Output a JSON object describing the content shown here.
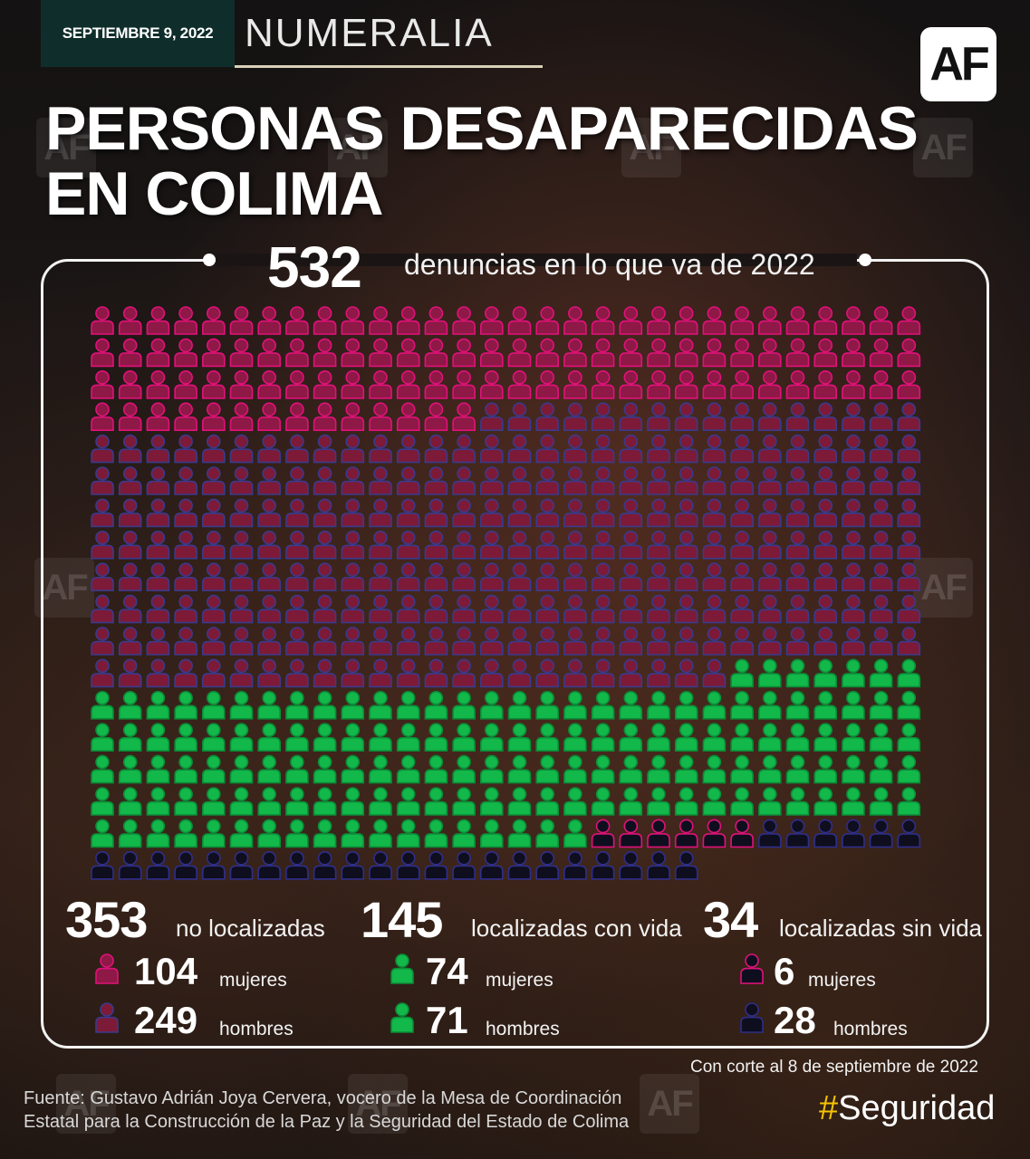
{
  "header": {
    "date": "SEPTIEMBRE 9, 2022",
    "section": "NUMERALIA",
    "logo": "AF"
  },
  "title": {
    "line1": "PERSONAS DESAPARECIDAS",
    "line2": "EN COLIMA"
  },
  "total": {
    "value": "532",
    "label": "denuncias en lo que va de 2022"
  },
  "colors": {
    "no_localizadas_mujeres": "#e0127a",
    "no_localizadas_hombres": "#3a3a8c",
    "con_vida": "#12b84a",
    "sin_vida_mujeres": "#e0127a",
    "sin_vida_hombres": "#2e2e8a"
  },
  "chart_data": {
    "type": "waffle",
    "columns": 30,
    "total": 532,
    "groups": [
      {
        "label": "no localizadas",
        "subgroup": "mujeres",
        "value": 104
      },
      {
        "label": "no localizadas",
        "subgroup": "hombres",
        "value": 249
      },
      {
        "label": "localizadas con vida",
        "subgroup": "mujeres",
        "value": 74
      },
      {
        "label": "localizadas con vida",
        "subgroup": "hombres",
        "value": 71
      },
      {
        "label": "localizadas sin vida",
        "subgroup": "mujeres",
        "value": 6
      },
      {
        "label": "localizadas sin vida",
        "subgroup": "hombres",
        "value": 28
      }
    ]
  },
  "stats": {
    "no_localizadas": {
      "value": "353",
      "label": "no localizadas",
      "mujeres": "104",
      "hombres": "249"
    },
    "con_vida": {
      "value": "145",
      "label": "localizadas con vida",
      "mujeres": "74",
      "hombres": "71"
    },
    "sin_vida": {
      "value": "34",
      "label": "localizadas sin vida",
      "mujeres": "6",
      "hombres": "28"
    },
    "mujeres_label": "mujeres",
    "hombres_label": "hombres"
  },
  "footer": {
    "cutoff": "Con corte al 8 de septiembre de 2022",
    "source_line1": "Fuente: Gustavo Adrián Joya Cervera, vocero de la Mesa de Coordinación",
    "source_line2": "Estatal para la Construcción de la Paz y la Seguridad del Estado de Colima",
    "hashtag_symbol": "#",
    "hashtag_text": "Seguridad"
  }
}
